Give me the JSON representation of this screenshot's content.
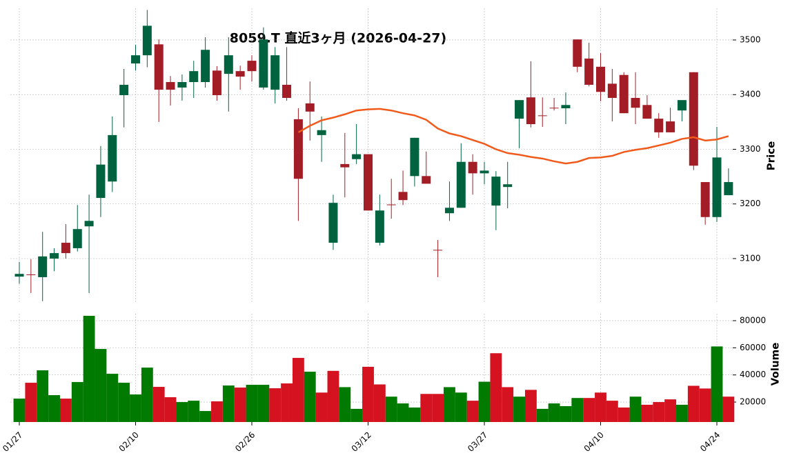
{
  "chart_data": [
    {
      "type": "candlestick",
      "title": "8059.T  直近3ヶ月  (2026-04-27)",
      "ylabel": "Price",
      "categories": [
        "01/27",
        null,
        null,
        null,
        null,
        null,
        null,
        null,
        null,
        null,
        "02/10",
        null,
        null,
        null,
        null,
        null,
        null,
        null,
        null,
        null,
        "02/26",
        null,
        null,
        null,
        null,
        null,
        null,
        null,
        null,
        null,
        "03/12",
        null,
        null,
        null,
        null,
        null,
        null,
        null,
        null,
        null,
        "03/27",
        null,
        null,
        null,
        null,
        null,
        null,
        null,
        null,
        null,
        "04/10",
        null,
        null,
        null,
        null,
        null,
        null,
        null,
        null,
        null,
        "04/24",
        null
      ],
      "open": [
        3067,
        3071,
        3066,
        3100,
        3129,
        3119,
        3159,
        3211,
        3241,
        3399,
        3457,
        3472,
        3492,
        3423,
        3413,
        3423,
        3423,
        3444,
        3438,
        3443,
        3462,
        3413,
        3409,
        3418,
        3355,
        3384,
        3326,
        3129,
        3273,
        3282,
        3291,
        3129,
        3199,
        3222,
        3251,
        3251,
        3116,
        3183,
        3193,
        3277,
        3256,
        3197,
        3231,
        3356,
        3395,
        3362,
        3376,
        3375,
        3501,
        3466,
        3451,
        3420,
        3436,
        3394,
        3381,
        3356,
        3351,
        3371,
        3441,
        3240,
        3176,
        3216
      ],
      "high": [
        3094,
        3099,
        3149,
        3119,
        3163,
        3198,
        3217,
        3306,
        3360,
        3447,
        3491,
        3555,
        3501,
        3434,
        3437,
        3462,
        3505,
        3452,
        3505,
        3453,
        3472,
        3523,
        3487,
        3487,
        3375,
        3424,
        3360,
        3217,
        3330,
        3346,
        3291,
        3217,
        3246,
        3261,
        3321,
        3296,
        3134,
        3241,
        3311,
        3291,
        3277,
        3260,
        3277,
        3390,
        3461,
        3395,
        3394,
        3404,
        3501,
        3495,
        3476,
        3447,
        3441,
        3441,
        3399,
        3366,
        3376,
        3390,
        3441,
        3240,
        3341,
        3265
      ],
      "low": [
        3054,
        3037,
        3022,
        3077,
        3100,
        3113,
        3037,
        3176,
        3222,
        3340,
        3444,
        3450,
        3350,
        3380,
        3389,
        3394,
        3413,
        3389,
        3369,
        3409,
        3424,
        3409,
        3384,
        3389,
        3169,
        3316,
        3277,
        3116,
        3212,
        3273,
        3188,
        3124,
        3173,
        3198,
        3232,
        3237,
        3066,
        3169,
        3193,
        3217,
        3236,
        3152,
        3192,
        3302,
        3340,
        3341,
        3371,
        3346,
        3441,
        3415,
        3388,
        3351,
        3366,
        3346,
        3356,
        3321,
        3331,
        3351,
        3262,
        3162,
        3167,
        3216
      ],
      "close": [
        3072,
        3070,
        3104,
        3110,
        3110,
        3154,
        3169,
        3272,
        3326,
        3418,
        3472,
        3526,
        3409,
        3409,
        3423,
        3443,
        3482,
        3399,
        3472,
        3433,
        3443,
        3501,
        3472,
        3394,
        3246,
        3369,
        3335,
        3202,
        3267,
        3291,
        3188,
        3188,
        3198,
        3207,
        3321,
        3237,
        3115,
        3193,
        3277,
        3256,
        3261,
        3250,
        3236,
        3390,
        3346,
        3361,
        3375,
        3381,
        3451,
        3418,
        3405,
        3394,
        3366,
        3376,
        3356,
        3331,
        3331,
        3390,
        3270,
        3176,
        3285,
        3240
      ],
      "up_color": "#00633f",
      "down_color": "#a21d25",
      "lines": [
        {
          "color": "#f15a1b",
          "values": [
            null,
            null,
            null,
            null,
            null,
            null,
            null,
            null,
            null,
            null,
            null,
            null,
            null,
            null,
            null,
            null,
            null,
            null,
            null,
            null,
            null,
            null,
            null,
            null,
            3331,
            3343,
            3353,
            3358,
            3364,
            3371,
            3373,
            3374,
            3371,
            3366,
            3362,
            3354,
            3338,
            3329,
            3324,
            3317,
            3310,
            3300,
            3293,
            3290,
            3286,
            3283,
            3278,
            3274,
            3277,
            3284,
            3285,
            3288,
            3295,
            3299,
            3302,
            3307,
            3312,
            3319,
            3322,
            3316,
            3318,
            3324
          ]
        }
      ],
      "ylim": [
        3018,
        3558
      ],
      "yticks": [
        3100,
        3200,
        3300,
        3400,
        3500
      ],
      "grid": true
    },
    {
      "type": "bar",
      "ylabel": "Volume",
      "values": [
        22550,
        34240,
        43400,
        25100,
        22550,
        34750,
        83560,
        59150,
        40850,
        34240,
        25600,
        45400,
        31200,
        23570,
        20000,
        21000,
        13400,
        20520,
        32210,
        30690,
        32720,
        32720,
        30180,
        33740,
        52550,
        42380,
        27000,
        43000,
        31000,
        15000,
        46000,
        33000,
        24000,
        19000,
        16000,
        26000,
        26000,
        31000,
        27000,
        21000,
        35000,
        56000,
        31000,
        24000,
        29000,
        15000,
        19000,
        17000,
        23000,
        23000,
        27000,
        21000,
        16000,
        24000,
        18000,
        20000,
        22000,
        18000,
        32000,
        30000,
        61000,
        24000
      ],
      "colors": [
        "#007a00",
        "#d51220",
        "#007a00",
        "#007a00",
        "#d51220",
        "#007a00",
        "#007a00",
        "#007a00",
        "#007a00",
        "#007a00",
        "#007a00",
        "#007a00",
        "#d51220",
        "#d51220",
        "#007a00",
        "#007a00",
        "#007a00",
        "#d51220",
        "#007a00",
        "#d51220",
        "#007a00",
        "#007a00",
        "#d51220",
        "#d51220",
        "#d51220",
        "#007a00",
        "#d51220",
        "#d51220",
        "#007a00",
        "#007a00",
        "#d51220",
        "#d51220",
        "#007a00",
        "#007a00",
        "#007a00",
        "#d51220",
        "#d51220",
        "#007a00",
        "#007a00",
        "#d51220",
        "#007a00",
        "#d51220",
        "#d51220",
        "#007a00",
        "#d51220",
        "#007a00",
        "#007a00",
        "#007a00",
        "#007a00",
        "#d51220",
        "#d51220",
        "#d51220",
        "#d51220",
        "#007a00",
        "#d51220",
        "#d51220",
        "#d51220",
        "#007a00",
        "#d51220",
        "#d51220",
        "#007a00",
        "#d51220"
      ],
      "ylim": [
        5300,
        85100
      ],
      "yticks": [
        20000,
        40000,
        60000,
        80000
      ],
      "grid": true
    }
  ]
}
